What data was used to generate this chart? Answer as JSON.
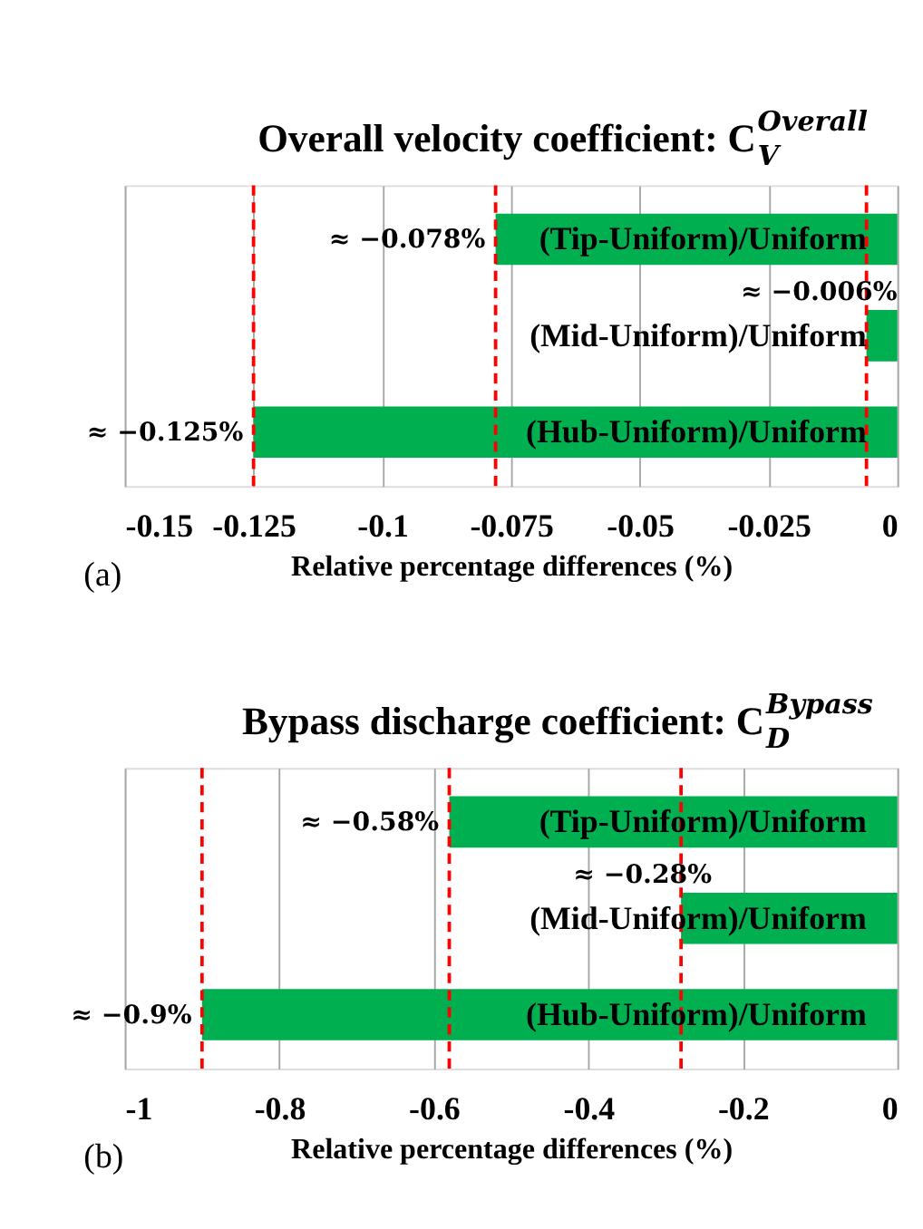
{
  "chart_data": [
    {
      "type": "bar",
      "orientation": "horizontal",
      "title": "Overall velocity coefficient: C$^{Overall}$$_{V}$",
      "xlabel": "Relative percentage differences (%)",
      "categories": [
        "(Tip-Uniform)/Uniform",
        "(Mid-Uniform)/Uniform",
        "(Hub-Uniform)/Uniform"
      ],
      "values": [
        -0.078,
        -0.006,
        -0.125
      ],
      "color": "#00b050",
      "value_labels": [
        "≈ −0.078%",
        "≈ −0.006%",
        "≈ −0.125%"
      ],
      "xlim": [
        -0.15,
        0
      ],
      "xticks": [
        -0.15,
        -0.125,
        -0.1,
        -0.075,
        -0.05,
        -0.025,
        0
      ],
      "grid": "x",
      "ref_lines": [
        {
          "axis": "x",
          "value": -0.078,
          "color": "#ff0000",
          "line_style": "dashed"
        },
        {
          "axis": "x",
          "value": -0.006,
          "color": "#ff0000",
          "line_style": "dashed"
        },
        {
          "axis": "x",
          "value": -0.125,
          "color": "#ff0000",
          "line_style": "dashed"
        }
      ],
      "annotations": [
        "(a)"
      ]
    },
    {
      "type": "bar",
      "orientation": "horizontal",
      "title": "Bypass discharge coefficient: C$^{Bypass}$$_{D}$",
      "xlabel": "Relative percentage differences (%)",
      "categories": [
        "(Tip-Uniform)/Uniform",
        "(Mid-Uniform)/Uniform",
        "(Hub-Uniform)/Uniform"
      ],
      "values": [
        -0.58,
        -0.28,
        -0.9
      ],
      "color": "#00b050",
      "value_labels": [
        "≈ −0.58%",
        "≈ −0.28%",
        "≈ −0.9%"
      ],
      "xlim": [
        -1,
        0
      ],
      "xticks": [
        -1,
        -0.8,
        -0.6,
        -0.4,
        -0.2,
        0
      ],
      "grid": "x",
      "ref_lines": [
        {
          "axis": "x",
          "value": -0.58,
          "color": "#ff0000",
          "line_style": "dashed"
        },
        {
          "axis": "x",
          "value": -0.28,
          "color": "#ff0000",
          "line_style": "dashed"
        },
        {
          "axis": "x",
          "value": -0.9,
          "color": "#ff0000",
          "line_style": "dashed"
        }
      ],
      "annotations": [
        "(b)"
      ]
    }
  ]
}
